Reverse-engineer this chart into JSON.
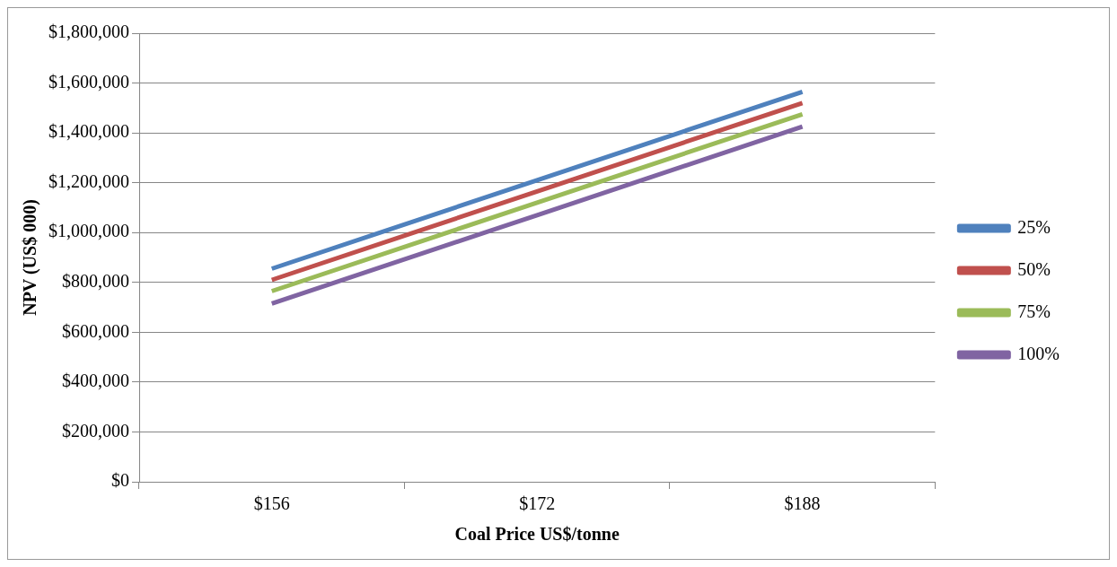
{
  "chart_data": {
    "type": "line",
    "xlabel": "Coal Price US$/tonne",
    "ylabel": "NPV (US$ 000)",
    "categories": [
      "$156",
      "$172",
      "$188"
    ],
    "series": [
      {
        "name": "25%",
        "color": "#4f81bd",
        "values": [
          855000,
          1210000,
          1565000
        ]
      },
      {
        "name": "50%",
        "color": "#c0504d",
        "values": [
          810000,
          1165000,
          1520000
        ]
      },
      {
        "name": "75%",
        "color": "#9bbb59",
        "values": [
          765000,
          1120000,
          1475000
        ]
      },
      {
        "name": "100%",
        "color": "#8064a2",
        "values": [
          715000,
          1070000,
          1425000
        ]
      }
    ],
    "ylim": [
      0,
      1800000
    ],
    "yticks": [
      {
        "value": 0,
        "label": "$0"
      },
      {
        "value": 200000,
        "label": "$200,000"
      },
      {
        "value": 400000,
        "label": "$400,000"
      },
      {
        "value": 600000,
        "label": "$600,000"
      },
      {
        "value": 800000,
        "label": "$800,000"
      },
      {
        "value": 1000000,
        "label": "$1,000,000"
      },
      {
        "value": 1200000,
        "label": "$1,200,000"
      },
      {
        "value": 1400000,
        "label": "$1,400,000"
      },
      {
        "value": 1600000,
        "label": "$1,600,000"
      },
      {
        "value": 1800000,
        "label": "$1,800,000"
      }
    ],
    "grid": "y",
    "legend": "right",
    "marker": "none",
    "line_style": "solid"
  }
}
